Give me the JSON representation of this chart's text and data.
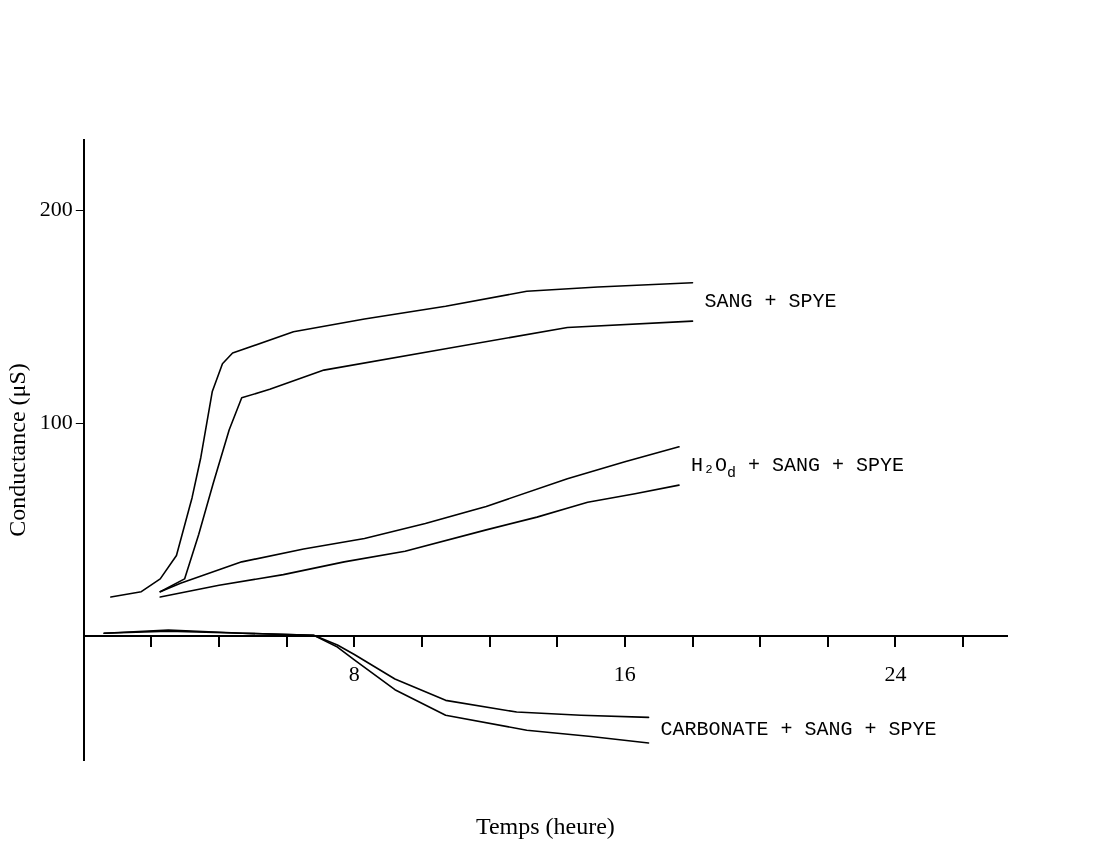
{
  "chart_data": {
    "type": "line",
    "xlabel": "Temps (heure)",
    "ylabel": "Conductance (μS)",
    "xlim": [
      0,
      27.3
    ],
    "ylim": [
      -58,
      233
    ],
    "xticks": [
      {
        "value": 2,
        "label": null
      },
      {
        "value": 4,
        "label": null
      },
      {
        "value": 6,
        "label": null
      },
      8,
      {
        "value": 10,
        "label": null
      },
      {
        "value": 12,
        "label": null
      },
      {
        "value": 14,
        "label": null
      },
      16,
      {
        "value": 18,
        "label": null
      },
      {
        "value": 20,
        "label": null
      },
      {
        "value": 22,
        "label": null
      },
      24,
      {
        "value": 26,
        "label": null
      }
    ],
    "yticks": [
      100,
      200
    ],
    "grid": false,
    "legend": false,
    "marker": "none",
    "line_style": "solid",
    "series": [
      {
        "color": "#000000",
        "x": [
          0.8,
          1.7,
          2.26,
          2.74,
          3.2,
          3.46,
          3.8,
          4.1,
          4.4,
          6.2,
          8.3,
          10.7,
          13.1,
          15.2,
          18
        ],
        "values": [
          18.5,
          21,
          27,
          38,
          65,
          84,
          115,
          128,
          133,
          143,
          149,
          155,
          162,
          164,
          166
        ]
      },
      {
        "color": "#000000",
        "x": [
          2.26,
          2.98,
          3.4,
          3.83,
          4.3,
          4.67,
          5.5,
          7.1,
          10.7,
          14.3,
          18
        ],
        "values": [
          21,
          27,
          48,
          72,
          97,
          112,
          116,
          125,
          135,
          145,
          148
        ]
      },
      {
        "color": "#000000",
        "x": [
          2.26,
          2.86,
          4.67,
          6.5,
          8.3,
          10.1,
          11.9,
          14.3,
          16,
          17.6
        ],
        "values": [
          21,
          25,
          35,
          41,
          46,
          53,
          61,
          74,
          82,
          89
        ]
      },
      {
        "color": "#000000",
        "x": [
          2.26,
          4,
          5.9,
          7.7,
          9.5,
          11.9,
          13.4,
          14.9,
          16.3,
          17.6
        ],
        "values": [
          18.5,
          24,
          29,
          35,
          40,
          50,
          56,
          63,
          67,
          71
        ]
      },
      {
        "color": "#000000",
        "x": [
          0.6,
          2.5,
          4.7,
          6.8,
          7.5,
          8,
          9.2,
          10.7,
          12.8,
          14.7,
          16.7
        ],
        "values": [
          1.5,
          2.5,
          1.5,
          0.5,
          -4,
          -8.5,
          -20,
          -30,
          -35.5,
          -37,
          -38
        ]
      },
      {
        "color": "#000000",
        "x": [
          0.6,
          2.5,
          4.7,
          6.8,
          7.5,
          8,
          9.2,
          10.7,
          13.1,
          15,
          16.7
        ],
        "values": [
          1.5,
          3,
          1.5,
          0.5,
          -5,
          -11,
          -25,
          -37,
          -44,
          -47,
          -50
        ]
      }
    ],
    "annotations": [
      "SANG + SPYE",
      "H₂O$_{d}$ + SANG + SPYE",
      "CARBONATE + SANG + SPYE"
    ]
  }
}
